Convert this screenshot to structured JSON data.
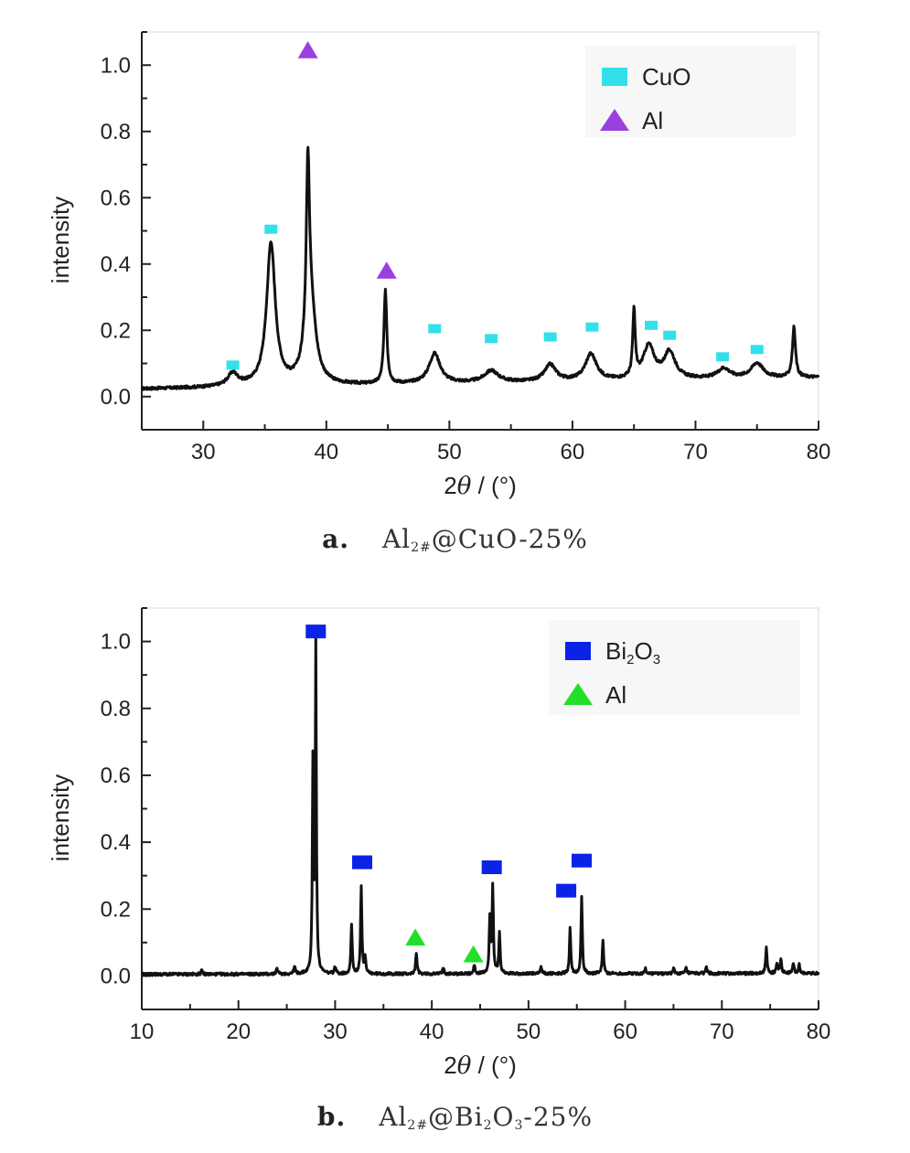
{
  "chart_data": [
    {
      "type": "line",
      "id": "a",
      "xlabel_parts": [
        "2",
        "θ",
        " / (°)"
      ],
      "ylabel": "intensity",
      "xlim": [
        25,
        80
      ],
      "ylim": [
        -0.1,
        1.1
      ],
      "xticks": [
        30,
        40,
        50,
        60,
        70,
        80
      ],
      "yticks": [
        0.0,
        0.2,
        0.4,
        0.6,
        0.8,
        1.0
      ],
      "ytick_labels": [
        "0.0",
        "0.2",
        "0.4",
        "0.6",
        "0.8",
        "1.0"
      ],
      "grid": false,
      "legend_position": "top-right",
      "legend": [
        {
          "label_parts": [
            "CuO"
          ],
          "marker": "square",
          "color": "#33e0ea"
        },
        {
          "label_parts": [
            "Al"
          ],
          "marker": "triangle",
          "color": "#9b3fe0"
        }
      ],
      "baseline": {
        "start": 0.023,
        "end": 0.058
      },
      "peaks": [
        {
          "x": 32.4,
          "h": 0.038,
          "w": 0.5
        },
        {
          "x": 35.5,
          "h": 0.43,
          "w": 0.42
        },
        {
          "x": 38.5,
          "h": 0.5,
          "w": 0.15
        },
        {
          "x": 38.7,
          "h": 0.25,
          "w": 0.5
        },
        {
          "x": 44.8,
          "h": 0.28,
          "w": 0.14
        },
        {
          "x": 48.8,
          "h": 0.09,
          "w": 0.55
        },
        {
          "x": 53.4,
          "h": 0.035,
          "w": 0.7
        },
        {
          "x": 58.2,
          "h": 0.05,
          "w": 0.55
        },
        {
          "x": 61.5,
          "h": 0.08,
          "w": 0.55
        },
        {
          "x": 65.0,
          "h": 0.2,
          "w": 0.12
        },
        {
          "x": 66.2,
          "h": 0.1,
          "w": 0.55
        },
        {
          "x": 67.9,
          "h": 0.08,
          "w": 0.55
        },
        {
          "x": 72.3,
          "h": 0.03,
          "w": 0.6
        },
        {
          "x": 75.0,
          "h": 0.045,
          "w": 0.6
        },
        {
          "x": 78.0,
          "h": 0.15,
          "w": 0.15
        }
      ],
      "markers": [
        {
          "phase": "CuO",
          "x": 32.4,
          "y": 0.095
        },
        {
          "phase": "CuO",
          "x": 35.5,
          "y": 0.505
        },
        {
          "phase": "Al",
          "x": 38.5,
          "y": 1.045
        },
        {
          "phase": "Al",
          "x": 44.9,
          "y": 0.38
        },
        {
          "phase": "CuO",
          "x": 48.8,
          "y": 0.205
        },
        {
          "phase": "CuO",
          "x": 53.4,
          "y": 0.175
        },
        {
          "phase": "CuO",
          "x": 58.2,
          "y": 0.18
        },
        {
          "phase": "CuO",
          "x": 61.6,
          "y": 0.21
        },
        {
          "phase": "CuO",
          "x": 66.4,
          "y": 0.215
        },
        {
          "phase": "CuO",
          "x": 67.9,
          "y": 0.185
        },
        {
          "phase": "CuO",
          "x": 72.2,
          "y": 0.12
        },
        {
          "phase": "CuO",
          "x": 75.0,
          "y": 0.142
        }
      ]
    },
    {
      "type": "line",
      "id": "b",
      "xlabel_parts": [
        "2",
        "θ",
        " / (°)"
      ],
      "ylabel": "intensity",
      "xlim": [
        10,
        80
      ],
      "ylim": [
        -0.1,
        1.1
      ],
      "xticks": [
        10,
        20,
        30,
        40,
        50,
        60,
        70,
        80
      ],
      "yticks": [
        0.0,
        0.2,
        0.4,
        0.6,
        0.8,
        1.0
      ],
      "ytick_labels": [
        "0.0",
        "0.2",
        "0.4",
        "0.6",
        "0.8",
        "1.0"
      ],
      "grid": false,
      "legend_position": "top-right",
      "legend": [
        {
          "label_parts": [
            "Bi",
            "2",
            "O",
            "3"
          ],
          "marker": "square",
          "color": "#0a23e6"
        },
        {
          "label_parts": [
            "Al"
          ],
          "marker": "triangle",
          "color": "#22e02a"
        }
      ],
      "baseline": {
        "start": 0.005,
        "end": 0.008
      },
      "peaks": [
        {
          "x": 16.2,
          "h": 0.01,
          "w": 0.1
        },
        {
          "x": 24.0,
          "h": 0.015,
          "w": 0.1
        },
        {
          "x": 25.8,
          "h": 0.02,
          "w": 0.1
        },
        {
          "x": 27.7,
          "h": 0.62,
          "w": 0.07
        },
        {
          "x": 28.0,
          "h": 0.97,
          "w": 0.07
        },
        {
          "x": 30.0,
          "h": 0.02,
          "w": 0.1
        },
        {
          "x": 31.7,
          "h": 0.15,
          "w": 0.08
        },
        {
          "x": 32.7,
          "h": 0.26,
          "w": 0.08
        },
        {
          "x": 33.1,
          "h": 0.05,
          "w": 0.08
        },
        {
          "x": 38.4,
          "h": 0.06,
          "w": 0.09
        },
        {
          "x": 41.2,
          "h": 0.02,
          "w": 0.09
        },
        {
          "x": 44.4,
          "h": 0.025,
          "w": 0.09
        },
        {
          "x": 46.0,
          "h": 0.16,
          "w": 0.08
        },
        {
          "x": 46.3,
          "h": 0.26,
          "w": 0.08
        },
        {
          "x": 47.0,
          "h": 0.12,
          "w": 0.08
        },
        {
          "x": 51.3,
          "h": 0.02,
          "w": 0.09
        },
        {
          "x": 54.3,
          "h": 0.14,
          "w": 0.08
        },
        {
          "x": 55.5,
          "h": 0.23,
          "w": 0.08
        },
        {
          "x": 57.7,
          "h": 0.1,
          "w": 0.08
        },
        {
          "x": 62.1,
          "h": 0.015,
          "w": 0.09
        },
        {
          "x": 65.0,
          "h": 0.015,
          "w": 0.09
        },
        {
          "x": 66.3,
          "h": 0.015,
          "w": 0.09
        },
        {
          "x": 68.4,
          "h": 0.02,
          "w": 0.09
        },
        {
          "x": 74.6,
          "h": 0.075,
          "w": 0.09
        },
        {
          "x": 75.7,
          "h": 0.03,
          "w": 0.09
        },
        {
          "x": 76.1,
          "h": 0.04,
          "w": 0.09
        },
        {
          "x": 77.4,
          "h": 0.03,
          "w": 0.09
        },
        {
          "x": 78.0,
          "h": 0.025,
          "w": 0.09
        }
      ],
      "markers": [
        {
          "phase": "Bi2O3",
          "x": 28.0,
          "y": 1.03
        },
        {
          "phase": "Bi2O3",
          "x": 32.8,
          "y": 0.34
        },
        {
          "phase": "Al",
          "x": 38.3,
          "y": 0.115
        },
        {
          "phase": "Al",
          "x": 44.3,
          "y": 0.065
        },
        {
          "phase": "Bi2O3",
          "x": 46.2,
          "y": 0.325
        },
        {
          "phase": "Bi2O3",
          "x": 53.9,
          "y": 0.255
        },
        {
          "phase": "Bi2O3",
          "x": 55.5,
          "y": 0.345
        }
      ]
    }
  ],
  "captions": [
    {
      "label": "a.",
      "parts": [
        "Al",
        "2#",
        "@CuO-25%"
      ]
    },
    {
      "label": "b.",
      "parts": [
        "Al",
        "2#",
        "@Bi",
        "2",
        "O",
        "3",
        "-25%"
      ]
    }
  ]
}
